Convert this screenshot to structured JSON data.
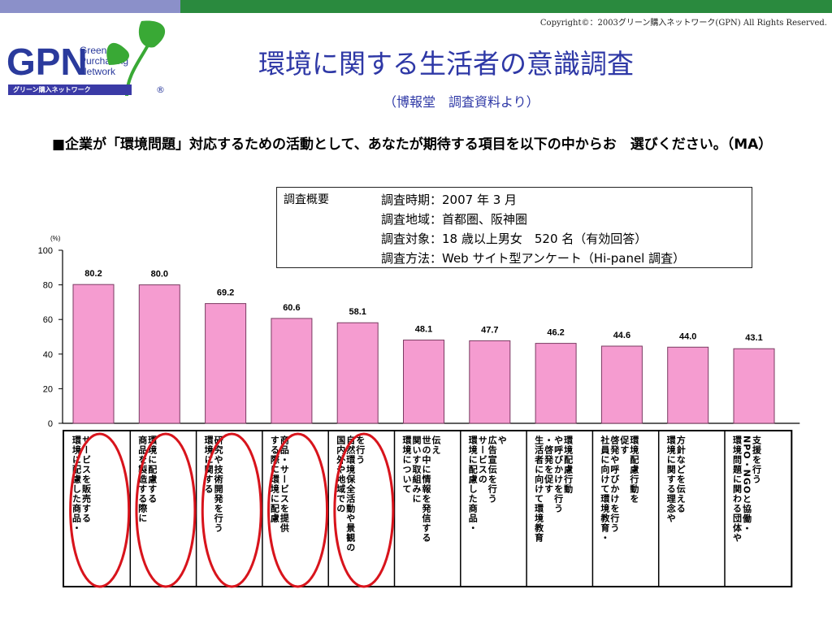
{
  "copyright": "Copyright©：2003グリーン購入ネットワーク(GPN) All Rights Reserved.",
  "logo": {
    "brand": "GPN",
    "line1": "Green",
    "line2": "Purchasing",
    "line3": "Network",
    "sub": "グリーン購入ネットワーク",
    "reg": "®"
  },
  "header": {
    "title": "環境に関する生活者の意識調査",
    "subtitle": "（博報堂　調査資料より）"
  },
  "question": "■企業が「環境問題」対応するための活動として、あなたが期待する項目を以下の中からお　選びください。（MA）",
  "survey": {
    "heading": "調査概要",
    "rows": [
      "調査時期：2007 年 3 月",
      "調査地域：首都圏、阪神圏",
      "調査対象：18 歳以上男女　520 名（有効回答）",
      "調査方法：Web サイト型アンケート（Hi-panel 調査）"
    ]
  },
  "colors": {
    "bar": "#f59cd0",
    "bar_stroke": "#7a3b62",
    "circle": "#d8141c",
    "title": "#2e38a6",
    "top_left": "#8b90c9",
    "top_right": "#2a8a3e"
  },
  "chart_data": {
    "type": "bar",
    "ylabel": "(%)",
    "ylim": [
      0,
      100
    ],
    "yticks": [
      0,
      20,
      40,
      60,
      80,
      100
    ],
    "grid": false,
    "values": [
      80.2,
      80.0,
      69.2,
      60.6,
      58.1,
      48.1,
      47.7,
      46.2,
      44.6,
      44.0,
      43.1
    ],
    "value_labels": [
      "80.2",
      "80.0",
      "69.2",
      "60.6",
      "58.1",
      "48.1",
      "47.7",
      "46.2",
      "44.6",
      "44.0",
      "43.1"
    ],
    "categories": [
      [
        "環境に配慮した商品・",
        "サービスを販売する"
      ],
      [
        "商品を製造する際に",
        "環境に配慮する"
      ],
      [
        "環境に関する",
        "研究や技術開発を行う"
      ],
      [
        "する際に環境に配慮",
        "商品・サービスを提供"
      ],
      [
        "国内外や地域での",
        "自然環境保全活動や景観の",
        "を行う"
      ],
      [
        "環境について",
        "関いす取組みに",
        "世の中に情報を発信する",
        "伝え"
      ],
      [
        "環境に配慮した商品・",
        "サービスの",
        "広告宣伝を行う",
        "や"
      ],
      [
        "生活者に向けて環境教育",
        "・啓発を促す",
        "や呼びかけを行う",
        "環境配慮行動"
      ],
      [
        "社員に向けて環境教育・",
        "啓発や呼びかけを行う",
        "促す",
        "環境配慮行動を"
      ],
      [
        "環境に関する理念や",
        "方針などを伝える"
      ],
      [
        "環境問題に関わる団体や",
        "NPO・NGOと協働・",
        "支援を行う"
      ]
    ],
    "highlighted": [
      0,
      1,
      2,
      3,
      4
    ]
  }
}
